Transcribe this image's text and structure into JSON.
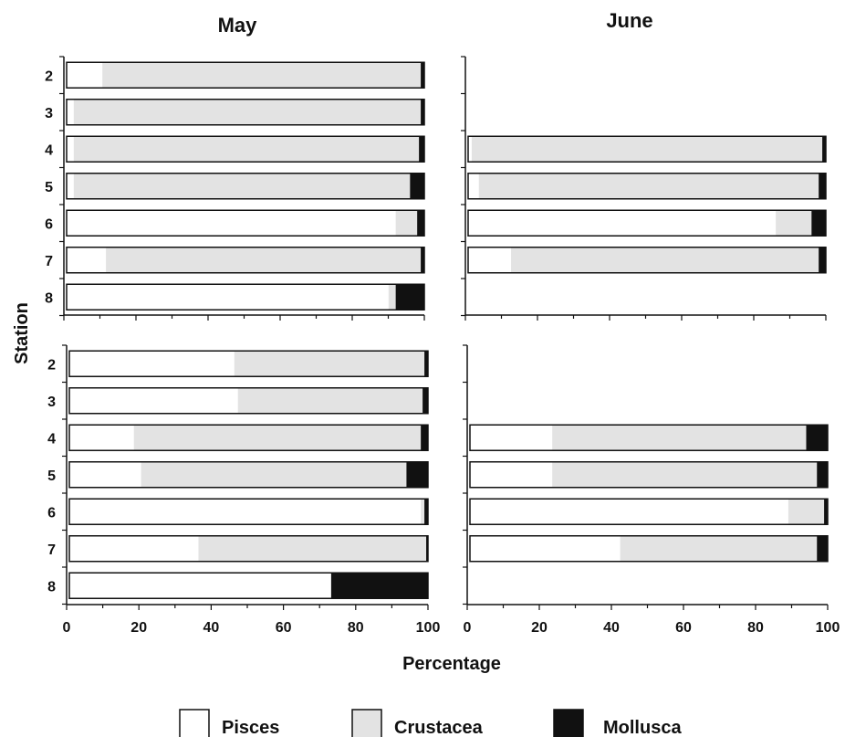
{
  "chart_data": {
    "type": "bar",
    "orientation": "horizontal-stacked",
    "xlabel": "Percentage",
    "ylabel": "Station",
    "xlim": [
      0,
      100
    ],
    "xticks": [
      "0",
      "20",
      "40",
      "60",
      "80",
      "100"
    ],
    "legend": [
      {
        "name": "Pisces",
        "color": "#ffffff"
      },
      {
        "name": "Crustacea",
        "color": "#e3e3e3"
      },
      {
        "name": "Mollusca",
        "color": "#111111"
      }
    ],
    "panels": [
      {
        "title": "May",
        "station_labels": [
          "2",
          "3",
          "4",
          "5",
          "6",
          "7",
          "8"
        ],
        "bars": [
          {
            "station": "2",
            "pisces": 10,
            "crustacea": 89,
            "mollusca": 1
          },
          {
            "station": "3",
            "pisces": 2,
            "crustacea": 97,
            "mollusca": 1
          },
          {
            "station": "4",
            "pisces": 2,
            "crustacea": 96.5,
            "mollusca": 1.5
          },
          {
            "station": "5",
            "pisces": 2,
            "crustacea": 94,
            "mollusca": 4
          },
          {
            "station": "6",
            "pisces": 92,
            "crustacea": 6,
            "mollusca": 2
          },
          {
            "station": "7",
            "pisces": 11,
            "crustacea": 88,
            "mollusca": 1
          },
          {
            "station": "8",
            "pisces": 90,
            "crustacea": 2,
            "mollusca": 8
          }
        ]
      },
      {
        "title": "June",
        "station_labels": [],
        "bars": [
          {
            "station": "4",
            "pisces": 1,
            "crustacea": 98,
            "mollusca": 1
          },
          {
            "station": "5",
            "pisces": 3,
            "crustacea": 95,
            "mollusca": 2
          },
          {
            "station": "6",
            "pisces": 86,
            "crustacea": 10,
            "mollusca": 4
          },
          {
            "station": "7",
            "pisces": 12,
            "crustacea": 86,
            "mollusca": 2
          }
        ]
      },
      {
        "title": "",
        "station_labels": [
          "2",
          "3",
          "4",
          "5",
          "6",
          "7",
          "8"
        ],
        "bars": [
          {
            "station": "2",
            "pisces": 46,
            "crustacea": 53,
            "mollusca": 1
          },
          {
            "station": "3",
            "pisces": 47,
            "crustacea": 51.5,
            "mollusca": 1.5
          },
          {
            "station": "4",
            "pisces": 18,
            "crustacea": 80,
            "mollusca": 2
          },
          {
            "station": "5",
            "pisces": 20,
            "crustacea": 74,
            "mollusca": 6
          },
          {
            "station": "6",
            "pisces": 98,
            "crustacea": 1,
            "mollusca": 1
          },
          {
            "station": "7",
            "pisces": 36,
            "crustacea": 63.5,
            "mollusca": 0.5
          },
          {
            "station": "8",
            "pisces": 73,
            "crustacea": 0,
            "mollusca": 27
          }
        ]
      },
      {
        "title": "",
        "station_labels": [],
        "bars": [
          {
            "station": "4",
            "pisces": 23,
            "crustacea": 71,
            "mollusca": 6
          },
          {
            "station": "5",
            "pisces": 23,
            "crustacea": 74,
            "mollusca": 3
          },
          {
            "station": "6",
            "pisces": 89,
            "crustacea": 10,
            "mollusca": 1
          },
          {
            "station": "7",
            "pisces": 42,
            "crustacea": 55,
            "mollusca": 3
          }
        ]
      }
    ]
  }
}
